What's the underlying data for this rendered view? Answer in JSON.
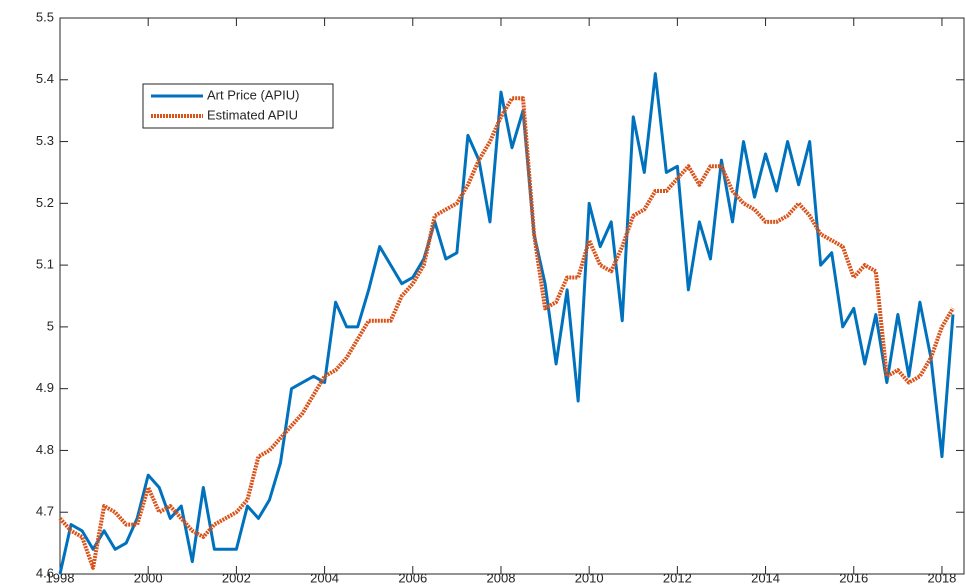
{
  "chart_data": {
    "type": "line",
    "x": [
      1998,
      1998.25,
      1998.5,
      1998.75,
      1999,
      1999.25,
      1999.5,
      1999.75,
      2000,
      2000.25,
      2000.5,
      2000.75,
      2001,
      2001.25,
      2001.5,
      2001.75,
      2002,
      2002.25,
      2002.5,
      2002.75,
      2003,
      2003.25,
      2003.5,
      2003.75,
      2004,
      2004.25,
      2004.5,
      2004.75,
      2005,
      2005.25,
      2005.5,
      2005.75,
      2006,
      2006.25,
      2006.5,
      2006.75,
      2007,
      2007.25,
      2007.5,
      2007.75,
      2008,
      2008.25,
      2008.5,
      2008.75,
      2009,
      2009.25,
      2009.5,
      2009.75,
      2010,
      2010.25,
      2010.5,
      2010.75,
      2011,
      2011.25,
      2011.5,
      2011.75,
      2012,
      2012.25,
      2012.5,
      2012.75,
      2013,
      2013.25,
      2013.5,
      2013.75,
      2014,
      2014.25,
      2014.5,
      2014.75,
      2015,
      2015.25,
      2015.5,
      2015.75,
      2016,
      2016.25,
      2016.5,
      2016.75,
      2017,
      2017.25,
      2017.5,
      2017.75,
      2018,
      2018.25
    ],
    "series": [
      {
        "name": "Art Price (APIU)",
        "color": "#0072BD",
        "style": "solid",
        "values": [
          4.6,
          4.68,
          4.67,
          4.64,
          4.67,
          4.64,
          4.65,
          4.69,
          4.76,
          4.74,
          4.69,
          4.71,
          4.62,
          4.74,
          4.64,
          4.64,
          4.64,
          4.71,
          4.69,
          4.72,
          4.78,
          4.9,
          4.91,
          4.92,
          4.91,
          5.04,
          5.0,
          5.0,
          5.06,
          5.13,
          5.1,
          5.07,
          5.08,
          5.11,
          5.17,
          5.11,
          5.12,
          5.31,
          5.27,
          5.17,
          5.38,
          5.29,
          5.35,
          5.15,
          5.07,
          4.94,
          5.06,
          4.88,
          5.2,
          5.13,
          5.17,
          5.01,
          5.34,
          5.25,
          5.41,
          5.25,
          5.26,
          5.06,
          5.17,
          5.11,
          5.27,
          5.17,
          5.3,
          5.21,
          5.28,
          5.22,
          5.3,
          5.23,
          5.3,
          5.1,
          5.12,
          5.0,
          5.03,
          4.94,
          5.02,
          4.91,
          5.02,
          4.92,
          5.04,
          4.95,
          4.79,
          5.02
        ]
      },
      {
        "name": "Estimated APIU",
        "color": "#D95319",
        "style": "dotted",
        "values": [
          4.69,
          4.67,
          4.66,
          4.61,
          4.71,
          4.7,
          4.68,
          4.68,
          4.74,
          4.7,
          4.71,
          4.69,
          4.67,
          4.66,
          4.68,
          4.69,
          4.7,
          4.72,
          4.79,
          4.8,
          4.82,
          4.84,
          4.86,
          4.89,
          4.92,
          4.93,
          4.95,
          4.98,
          5.01,
          5.01,
          5.01,
          5.05,
          5.07,
          5.1,
          5.18,
          5.19,
          5.2,
          5.23,
          5.27,
          5.3,
          5.34,
          5.37,
          5.37,
          5.15,
          5.03,
          5.04,
          5.08,
          5.08,
          5.14,
          5.1,
          5.09,
          5.13,
          5.18,
          5.19,
          5.22,
          5.22,
          5.24,
          5.26,
          5.23,
          5.26,
          5.26,
          5.22,
          5.2,
          5.19,
          5.17,
          5.17,
          5.18,
          5.2,
          5.18,
          5.15,
          5.14,
          5.13,
          5.08,
          5.1,
          5.09,
          4.92,
          4.93,
          4.91,
          4.92,
          4.95,
          5.0,
          5.03
        ]
      }
    ],
    "xlim": [
      1998,
      2018.5
    ],
    "xticks": [
      1998,
      2000,
      2002,
      2004,
      2006,
      2008,
      2010,
      2012,
      2014,
      2016,
      2018
    ],
    "ylim": [
      4.6,
      5.5
    ],
    "yticks": [
      4.6,
      4.7,
      4.8,
      4.9,
      5,
      5.1,
      5.2,
      5.3,
      5.4,
      5.5
    ],
    "grid": false,
    "legend": "upper left"
  }
}
